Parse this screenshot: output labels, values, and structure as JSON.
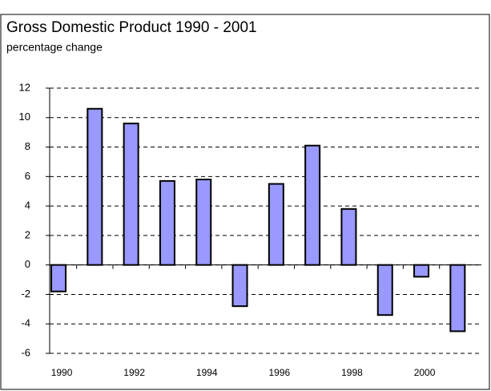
{
  "chart_data": {
    "type": "bar",
    "title": "Gross Domestic Product 1990 - 2001",
    "subtitle": "percentage change",
    "categories": [
      "1990",
      null,
      "1992",
      null,
      "1994",
      null,
      "1996",
      null,
      "1998",
      null,
      "2000",
      null
    ],
    "values": [
      -1.8,
      10.6,
      9.6,
      5.7,
      5.8,
      -2.8,
      5.5,
      8.1,
      3.8,
      -3.4,
      -0.8,
      -4.5
    ],
    "color": "#9999ff",
    "ylim": [
      -6,
      12
    ],
    "yticks": [
      -6,
      -4,
      -2,
      0,
      2,
      4,
      6,
      8,
      10,
      12
    ],
    "grid": true
  }
}
